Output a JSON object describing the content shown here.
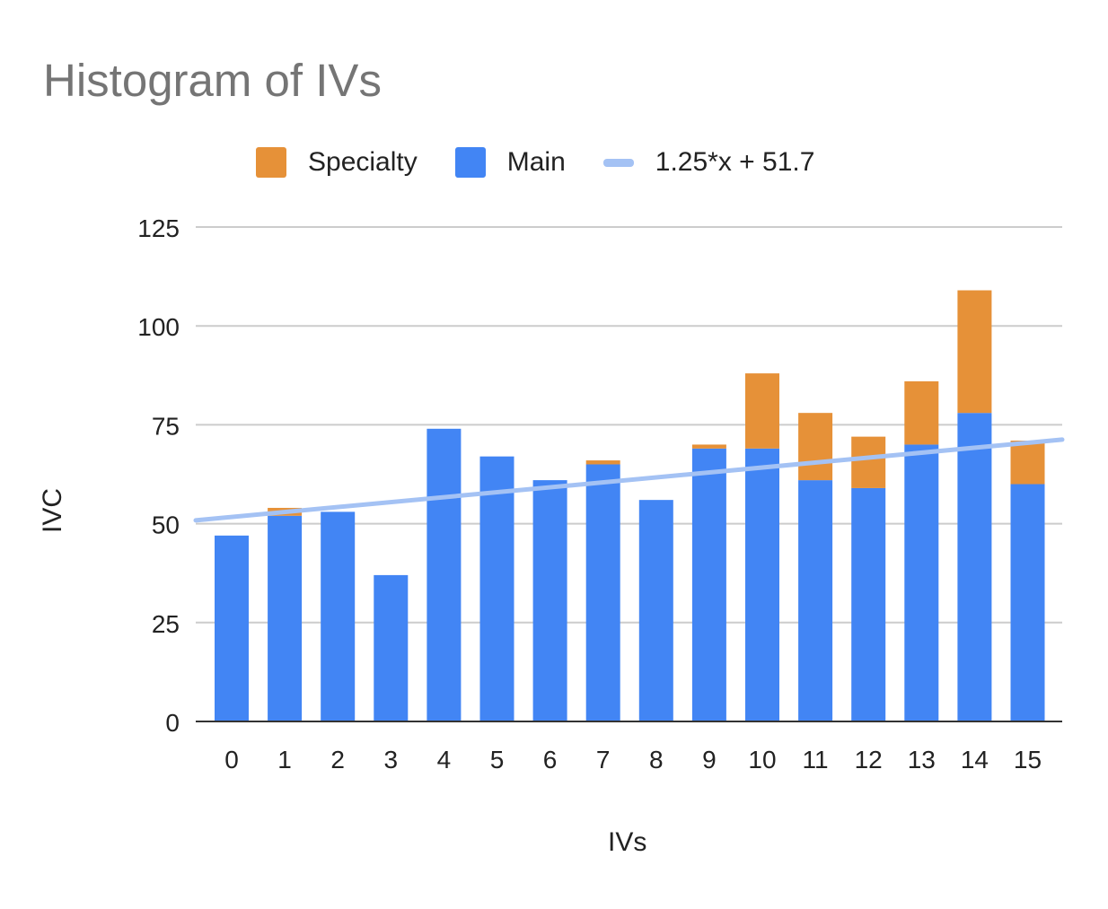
{
  "chart_data": {
    "type": "bar",
    "stacked": true,
    "title": "Histogram of IVs",
    "xlabel": "IVs",
    "ylabel": "IVC",
    "categories": [
      "0",
      "1",
      "2",
      "3",
      "4",
      "5",
      "6",
      "7",
      "8",
      "9",
      "10",
      "11",
      "12",
      "13",
      "14",
      "15"
    ],
    "ylim": [
      0,
      125
    ],
    "yticks": [
      0,
      25,
      50,
      75,
      100,
      125
    ],
    "grid": true,
    "legend_position": "top",
    "series": [
      {
        "name": "Main",
        "color": "#4285f4",
        "values": [
          47,
          52,
          53,
          37,
          74,
          67,
          61,
          65,
          56,
          69,
          69,
          61,
          59,
          70,
          78,
          60
        ]
      },
      {
        "name": "Specialty",
        "color": "#e69138",
        "values": [
          0,
          2,
          0,
          0,
          0,
          0,
          0,
          1,
          0,
          1,
          19,
          17,
          13,
          16,
          31,
          11
        ]
      }
    ],
    "trendline": {
      "name": "1.25*x + 51.7",
      "slope": 1.25,
      "intercept": 51.7,
      "color": "#a4c2f4"
    },
    "legend": [
      "Specialty",
      "Main",
      "1.25*x + 51.7"
    ]
  }
}
